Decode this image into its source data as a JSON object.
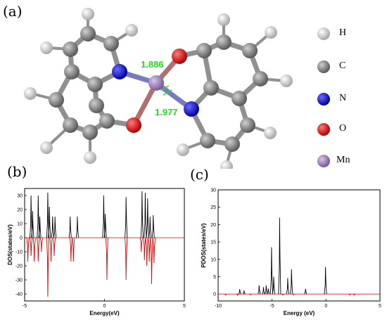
{
  "figure": {
    "panel_a_label": "(a)",
    "panel_b_label": "(b)",
    "panel_c_label": "(c)",
    "bond_labels": [
      "1.886",
      "1.977"
    ],
    "bond_label_color": "#22dd22",
    "legend": [
      {
        "label": "H",
        "color": "#eeeeee"
      },
      {
        "label": "C",
        "color": "#888888"
      },
      {
        "label": "N",
        "color": "#1010dd"
      },
      {
        "label": "O",
        "color": "#ee1111"
      },
      {
        "label": "Mn",
        "color": "#9b7bb5"
      }
    ]
  },
  "chart_data": [
    {
      "type": "line",
      "panel": "b",
      "xlabel": "Energy(eV)",
      "ylabel": "DOS(states/eV)",
      "xlim": [
        -5,
        5
      ],
      "ylim": [
        -45,
        35
      ],
      "x_ticks": [
        "-5",
        "0",
        "5"
      ],
      "y_ticks": [
        "30",
        "20",
        "10",
        "0",
        "-10",
        "-20",
        "-30",
        "-40"
      ],
      "series": [
        {
          "color": "#000000",
          "peaks": [
            [
              -4.6,
              30
            ],
            [
              -4.5,
              19
            ],
            [
              -4.15,
              30
            ],
            [
              -4.05,
              15
            ],
            [
              -3.55,
              32
            ],
            [
              -3.45,
              22
            ],
            [
              -3.25,
              15
            ],
            [
              -3.1,
              15
            ],
            [
              -2.15,
              15
            ],
            [
              -1.7,
              15
            ],
            [
              -0.05,
              30
            ],
            [
              0.05,
              17
            ],
            [
              1.35,
              29
            ],
            [
              2.35,
              33
            ],
            [
              2.55,
              32
            ],
            [
              2.7,
              28
            ],
            [
              2.85,
              15
            ],
            [
              3.05,
              16
            ]
          ]
        },
        {
          "color": "#dd0000",
          "peaks": [
            [
              -4.8,
              -17
            ],
            [
              -4.6,
              -13
            ],
            [
              -4.4,
              -17
            ],
            [
              -4.15,
              -17
            ],
            [
              -3.95,
              -10
            ],
            [
              -3.55,
              -42
            ],
            [
              -3.35,
              -17
            ],
            [
              -3.15,
              -13
            ],
            [
              -2.1,
              -17
            ],
            [
              -1.95,
              -17
            ],
            [
              0.15,
              -30
            ],
            [
              1.35,
              -30
            ],
            [
              2.3,
              -10
            ],
            [
              2.5,
              -16
            ],
            [
              2.65,
              -20
            ],
            [
              2.8,
              -17
            ],
            [
              2.95,
              -33
            ],
            [
              3.1,
              -18
            ]
          ]
        }
      ]
    },
    {
      "type": "line",
      "panel": "c",
      "xlabel": "Energy (eV)",
      "ylabel": "PDOS(states/eV)",
      "xlim": [
        -10,
        5
      ],
      "ylim": [
        -2,
        30
      ],
      "x_ticks": [
        "-10",
        "-5",
        "0",
        "5"
      ],
      "y_ticks": [
        "0",
        "5",
        "10",
        "15",
        "20",
        "25",
        "30"
      ],
      "series": [
        {
          "color": "#000000",
          "peaks": [
            [
              -8.0,
              1.4
            ],
            [
              -7.6,
              1.0
            ],
            [
              -6.2,
              2.5
            ],
            [
              -5.8,
              2.0
            ],
            [
              -5.55,
              2.5
            ],
            [
              -5.35,
              1.6
            ],
            [
              -5.05,
              13.5
            ],
            [
              -4.85,
              5.0
            ],
            [
              -4.3,
              22.0
            ],
            [
              -3.55,
              4.6
            ],
            [
              -3.2,
              7.1
            ],
            [
              -1.9,
              1.5
            ],
            [
              -0.05,
              7.8
            ]
          ]
        },
        {
          "color": "#dd0000",
          "peaks": [
            [
              -9.3,
              -0.25
            ],
            [
              -8.2,
              -0.3
            ],
            [
              -7.0,
              -0.2
            ],
            [
              -4.0,
              -0.3
            ],
            [
              -3.0,
              -0.2
            ],
            [
              2.2,
              -0.25
            ],
            [
              2.6,
              -0.3
            ]
          ]
        }
      ]
    }
  ]
}
